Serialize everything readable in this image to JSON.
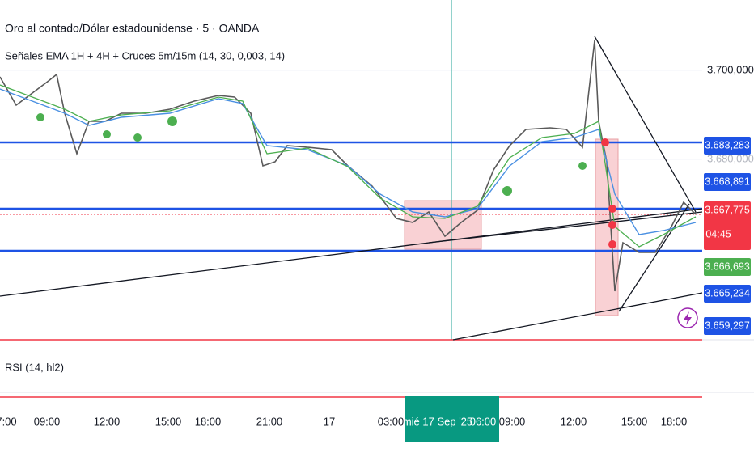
{
  "header": {
    "title": "Oro al contado/Dólar estadounidense · 5 · OANDA",
    "indicator": "Señales EMA 1H + 4H + Cruces 5m/15m (14, 30, 0,003, 14)"
  },
  "price_axis": {
    "level_top": "3.700,000",
    "level_hidden": "3.680,000",
    "labels": [
      {
        "text": "3.683,283",
        "kind": "blue"
      },
      {
        "text": "3.668,891",
        "kind": "blue"
      },
      {
        "text": "3.667,775",
        "kind": "red",
        "countdown": "04:45"
      },
      {
        "text": "3.666,693",
        "kind": "green"
      },
      {
        "text": "3.665,234",
        "kind": "blue"
      },
      {
        "text": "3.659,297",
        "kind": "blue"
      }
    ]
  },
  "rsi_pane": {
    "label": "RSI (14, hl2)"
  },
  "time_axis": {
    "labels": [
      "7:00",
      "09:00",
      "12:00",
      "15:00",
      "18:00",
      "21:00",
      "17",
      "03:00",
      "09:00",
      "12:00",
      "15:00",
      "18:00"
    ],
    "cursor": {
      "date": "mié 17 Sep '25",
      "time": "06:00"
    }
  }
}
